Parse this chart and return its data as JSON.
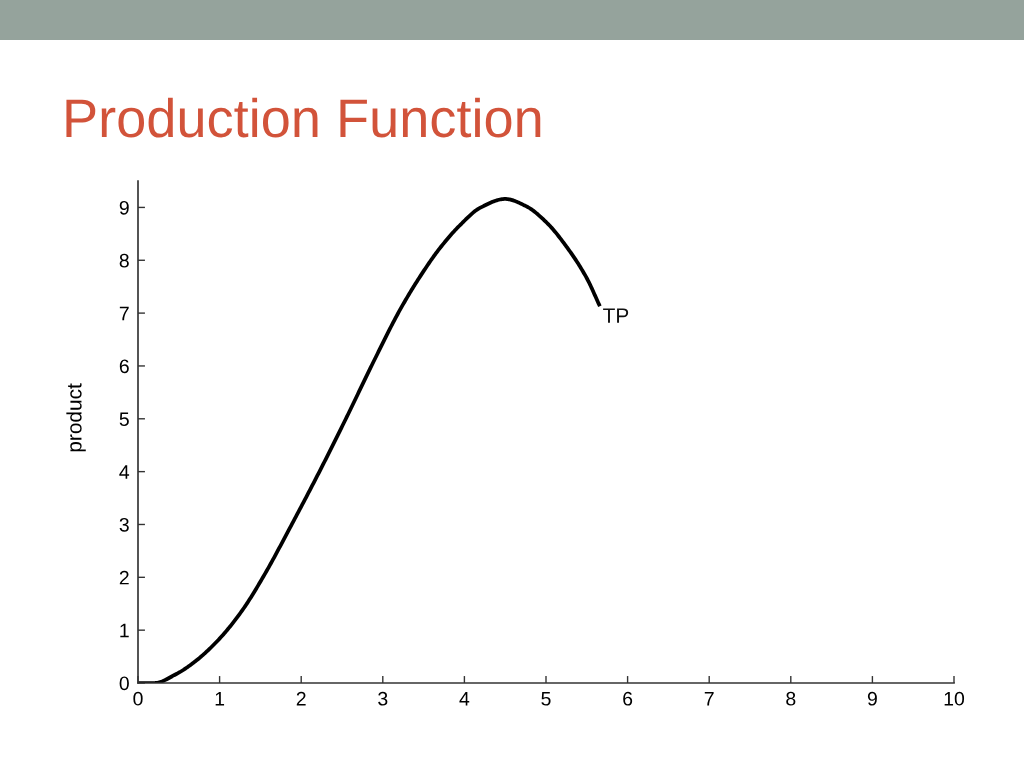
{
  "chart_data": {
    "type": "line",
    "title": "Production Function",
    "ylabel": "product",
    "x": [
      0,
      0.2,
      0.47,
      0.71,
      1.0,
      1.28,
      1.55,
      1.86,
      2.23,
      2.56,
      2.88,
      3.21,
      3.46,
      3.7,
      3.95,
      4.19,
      4.5,
      4.76,
      5.01,
      5.25,
      5.5,
      5.66
    ],
    "series": [
      {
        "name": "TP",
        "color": "#000000",
        "values": [
          0,
          0,
          0.17,
          0.42,
          0.84,
          1.38,
          2.05,
          2.93,
          4.02,
          5.04,
          6.06,
          7.06,
          7.7,
          8.23,
          8.67,
          8.99,
          9.16,
          9.02,
          8.71,
          8.26,
          7.66,
          7.13
        ]
      }
    ],
    "xlim": [
      0,
      10
    ],
    "ylim": [
      0,
      9.5
    ],
    "xticks": [
      0,
      1,
      2,
      3,
      4,
      5,
      6,
      7,
      8,
      9,
      10
    ],
    "yticks": [
      0,
      1,
      2,
      3,
      4,
      5,
      6,
      7,
      8,
      9
    ],
    "legend": false,
    "marker": "none",
    "line_style": "solid"
  }
}
